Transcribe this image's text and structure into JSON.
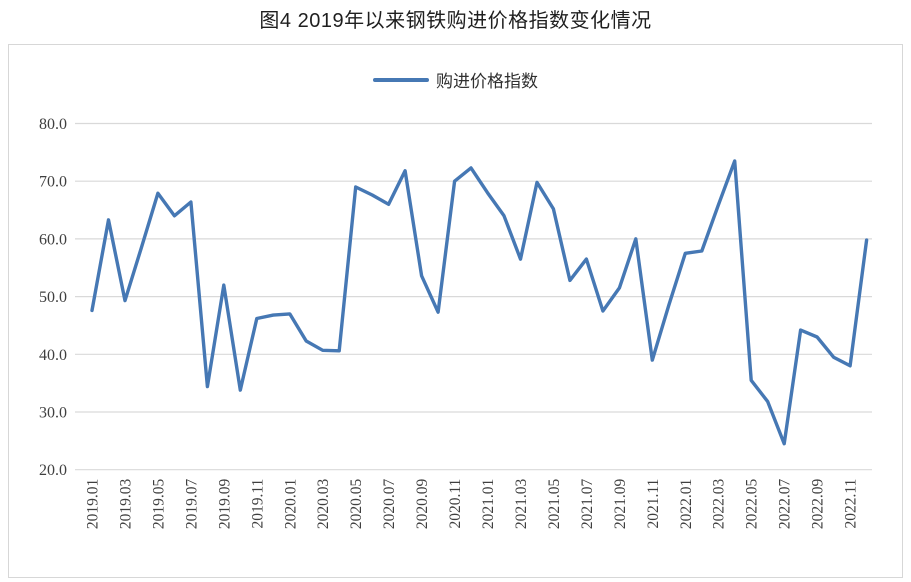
{
  "title": "图4  2019年以来钢铁购进价格指数变化情况",
  "legend": {
    "label": "购进价格指数"
  },
  "colors": {
    "line": "#4678b4",
    "grid": "#d9d9d9",
    "tick_text": "#3f3f3f",
    "title_text": "#1f1f1f"
  },
  "chart_data": {
    "type": "line",
    "title": "图4  2019年以来钢铁购进价格指数变化情况",
    "legend_entries": [
      "购进价格指数"
    ],
    "legend_position": "top-center",
    "grid": "horizontal-only",
    "ylim": [
      20,
      80
    ],
    "ytick_labels": [
      "80.0",
      "70.0",
      "60.0",
      "50.0",
      "40.0",
      "30.0",
      "20.0"
    ],
    "xtick_every": 2,
    "x": [
      "2019.01",
      "2019.02",
      "2019.03",
      "2019.04",
      "2019.05",
      "2019.06",
      "2019.07",
      "2019.08",
      "2019.09",
      "2019.10",
      "2019.11",
      "2019.12",
      "2020.01",
      "2020.02",
      "2020.03",
      "2020.04",
      "2020.05",
      "2020.06",
      "2020.07",
      "2020.08",
      "2020.09",
      "2020.10",
      "2020.11",
      "2020.12",
      "2021.01",
      "2021.02",
      "2021.03",
      "2021.04",
      "2021.05",
      "2021.06",
      "2021.07",
      "2021.08",
      "2021.09",
      "2021.10",
      "2021.11",
      "2021.12",
      "2022.01",
      "2022.02",
      "2022.03",
      "2022.04",
      "2022.05",
      "2022.06",
      "2022.07",
      "2022.08",
      "2022.09",
      "2022.10",
      "2022.11",
      "2022.12"
    ],
    "series": [
      {
        "name": "购进价格指数",
        "values": [
          47.6,
          63.3,
          49.3,
          58.5,
          67.9,
          64.0,
          66.4,
          34.4,
          52.0,
          33.8,
          46.2,
          46.8,
          47.0,
          42.3,
          40.7,
          40.6,
          69.0,
          67.6,
          66.0,
          71.8,
          53.6,
          47.3,
          70.0,
          72.3,
          68.0,
          64.0,
          56.5,
          69.8,
          65.2,
          52.8,
          56.5,
          47.5,
          51.5,
          60.0,
          39.0,
          48.5,
          57.5,
          57.9,
          65.8,
          73.5,
          35.5,
          31.8,
          24.5,
          44.2,
          43.0,
          39.5,
          38.0,
          59.8
        ]
      }
    ]
  }
}
